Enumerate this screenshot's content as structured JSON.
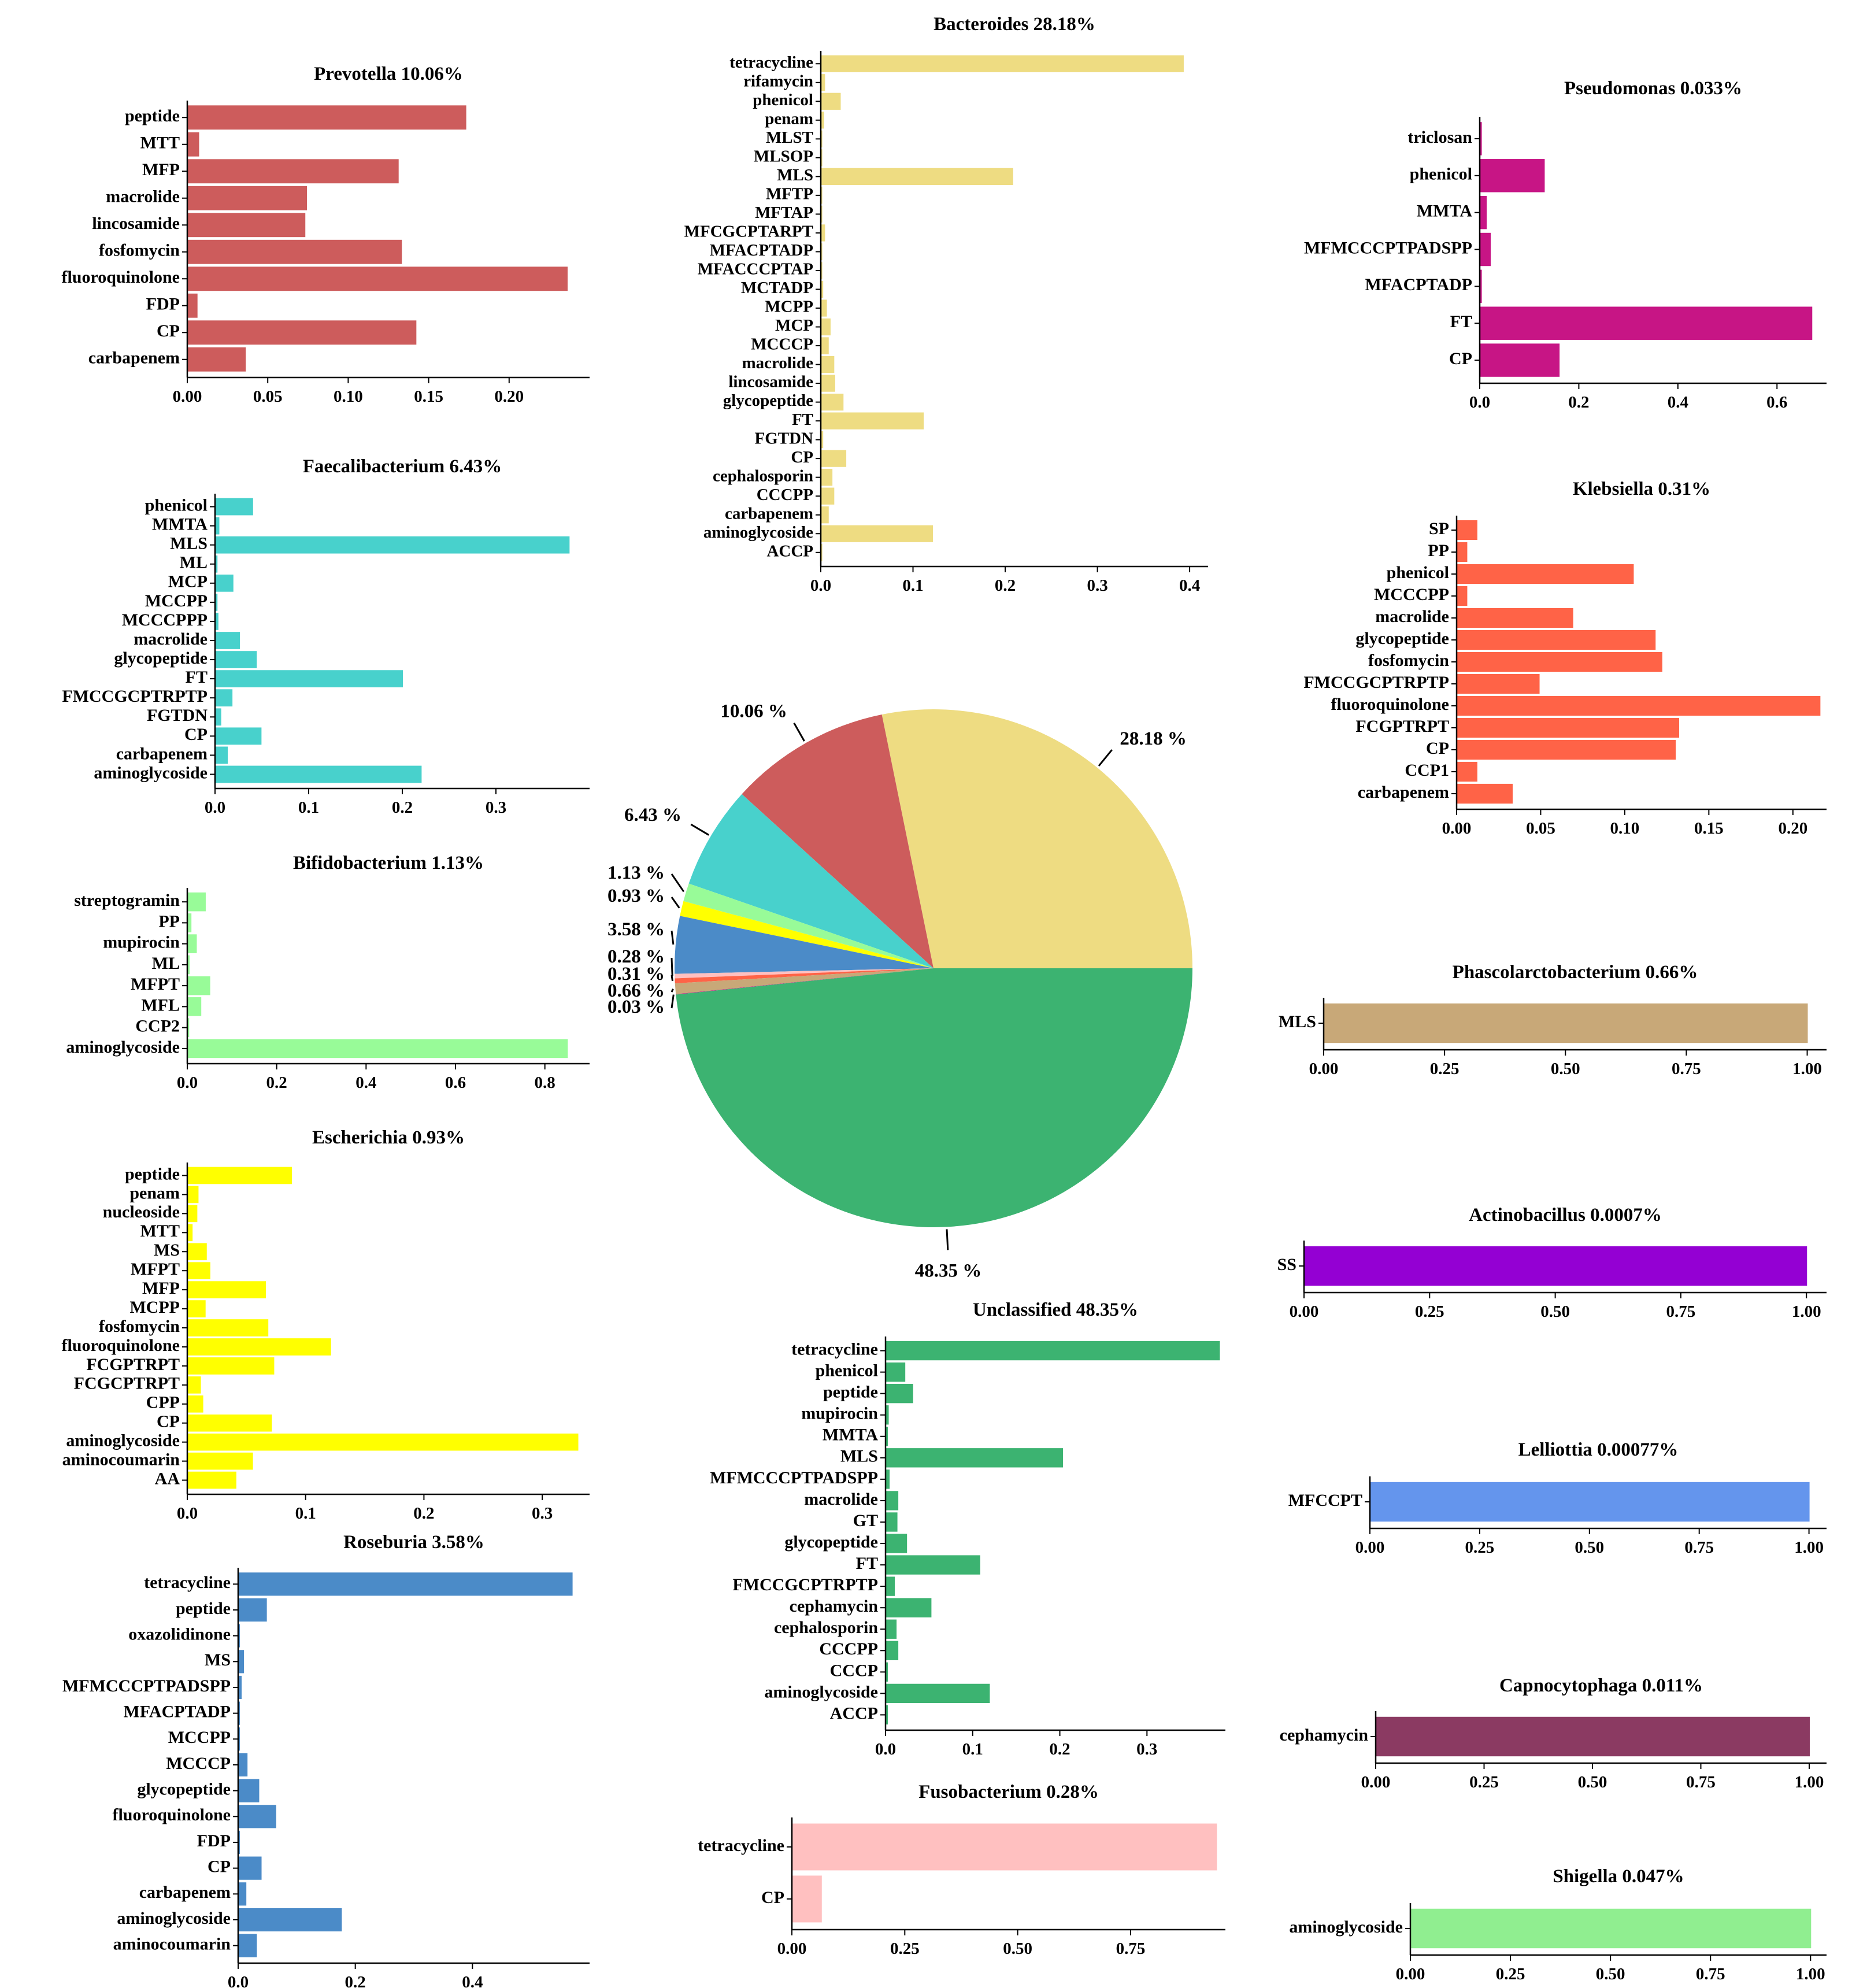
{
  "chart_data": [
    {
      "id": "prevotella",
      "type": "bar",
      "orientation": "horizontal",
      "title": "Prevotella 10.06%",
      "color": "#CD5C5C",
      "categories": [
        "peptide",
        "MTT",
        "MFP",
        "macrolide",
        "lincosamide",
        "fosfomycin",
        "fluoroquinolone",
        "FDP",
        "CP",
        "carbapenem"
      ],
      "values": [
        0.173,
        0.007,
        0.131,
        0.074,
        0.073,
        0.133,
        0.236,
        0.006,
        0.142,
        0.036
      ],
      "xlim": [
        0,
        0.25
      ],
      "ticks": [
        0,
        0.05,
        0.1,
        0.15,
        0.2
      ],
      "tick_labels": [
        "0.00",
        "0.05",
        "0.10",
        "0.15",
        "0.20"
      ]
    },
    {
      "id": "bacteroides",
      "type": "bar",
      "orientation": "horizontal",
      "title": "Bacteroides 28.18%",
      "color": "#EEDC82",
      "categories": [
        "tetracycline",
        "rifamycin",
        "phenicol",
        "penam",
        "MLST",
        "MLSOP",
        "MLS",
        "MFTP",
        "MFTAP",
        "MFCGCPTARPT",
        "MFACPTADP",
        "MFACCCPTAP",
        "MCTADP",
        "MCPP",
        "MCP",
        "MCCCP",
        "macrolide",
        "lincosamide",
        "glycopeptide",
        "FT",
        "FGTDN",
        "CP",
        "cephalosporin",
        "CCCPP",
        "carbapenem",
        "aminoglycoside",
        "ACCP"
      ],
      "values": [
        0.393,
        0.004,
        0.021,
        0.003,
        0.001,
        0.001,
        0.208,
        0.001,
        0.001,
        0.004,
        0.001,
        0.001,
        0.002,
        0.006,
        0.01,
        0.008,
        0.014,
        0.015,
        0.024,
        0.111,
        0.002,
        0.027,
        0.012,
        0.014,
        0.008,
        0.121,
        0.001
      ],
      "xlim": [
        0,
        0.42
      ],
      "ticks": [
        0,
        0.1,
        0.2,
        0.3,
        0.4
      ],
      "tick_labels": [
        "0.0",
        "0.1",
        "0.2",
        "0.3",
        "0.4"
      ]
    },
    {
      "id": "pseudomonas",
      "type": "bar",
      "orientation": "horizontal",
      "title": "Pseudomonas 0.033%",
      "color": "#C71585",
      "categories": [
        "triclosan",
        "phenicol",
        "MMTA",
        "MFMCCCPTPADSPP",
        "MFACPTADP",
        "FT",
        "CP"
      ],
      "values": [
        0.003,
        0.13,
        0.013,
        0.021,
        0.003,
        0.67,
        0.16
      ],
      "xlim": [
        0,
        0.7
      ],
      "ticks": [
        0,
        0.2,
        0.4,
        0.6
      ],
      "tick_labels": [
        "0.0",
        "0.2",
        "0.4",
        "0.6"
      ]
    },
    {
      "id": "faecalibacterium",
      "type": "bar",
      "orientation": "horizontal",
      "title": "Faecalibacterium 6.43%",
      "color": "#48D1CC",
      "categories": [
        "phenicol",
        "MMTA",
        "MLS",
        "ML",
        "MCP",
        "MCCPP",
        "MCCCPPP",
        "macrolide",
        "glycopeptide",
        "FT",
        "FMCCGCPTRPTP",
        "FGTDN",
        "CP",
        "carbapenem",
        "aminoglycoside"
      ],
      "values": [
        0.04,
        0.004,
        0.378,
        0.002,
        0.019,
        0.002,
        0.003,
        0.026,
        0.044,
        0.2,
        0.018,
        0.006,
        0.049,
        0.013,
        0.22
      ],
      "xlim": [
        0,
        0.4
      ],
      "ticks": [
        0,
        0.1,
        0.2,
        0.3
      ],
      "tick_labels": [
        "0.0",
        "0.1",
        "0.2",
        "0.3"
      ]
    },
    {
      "id": "klebsiella",
      "type": "bar",
      "orientation": "horizontal",
      "title": "Klebsiella 0.31%",
      "color": "#FF6347",
      "categories": [
        "SP",
        "PP",
        "phenicol",
        "MCCCPP",
        "macrolide",
        "glycopeptide",
        "fosfomycin",
        "FMCCGCPTRPTP",
        "fluoroquinolone",
        "FCGPTRPT",
        "CP",
        "CCP1",
        "carbapenem"
      ],
      "values": [
        0.012,
        0.006,
        0.105,
        0.006,
        0.069,
        0.118,
        0.122,
        0.049,
        0.216,
        0.132,
        0.13,
        0.012,
        0.033
      ],
      "xlim": [
        0,
        0.22
      ],
      "ticks": [
        0,
        0.05,
        0.1,
        0.15,
        0.2
      ],
      "tick_labels": [
        "0.00",
        "0.05",
        "0.10",
        "0.15",
        "0.20"
      ]
    },
    {
      "id": "bifidobacterium",
      "type": "bar",
      "orientation": "horizontal",
      "title": "Bifidobacterium 1.13%",
      "color": "#98FB98",
      "categories": [
        "streptogramin",
        "PP",
        "mupirocin",
        "ML",
        "MFPT",
        "MFL",
        "CCP2",
        "aminoglycoside"
      ],
      "values": [
        0.04,
        0.008,
        0.02,
        0.004,
        0.05,
        0.03,
        0.003,
        0.85
      ],
      "xlim": [
        0,
        0.9
      ],
      "ticks": [
        0,
        0.2,
        0.4,
        0.6,
        0.8
      ],
      "tick_labels": [
        "0.0",
        "0.2",
        "0.4",
        "0.6",
        "0.8"
      ]
    },
    {
      "id": "phascolarctobacterium",
      "type": "bar",
      "orientation": "horizontal",
      "title": "Phascolarctobacterium 0.66%",
      "color": "#C8A878",
      "categories": [
        "MLS"
      ],
      "values": [
        1.0
      ],
      "xlim": [
        0,
        1.04
      ],
      "ticks": [
        0,
        0.25,
        0.5,
        0.75,
        1.0
      ],
      "tick_labels": [
        "0.00",
        "0.25",
        "0.50",
        "0.75",
        "1.00"
      ]
    },
    {
      "id": "escherichia",
      "type": "bar",
      "orientation": "horizontal",
      "title": "Escherichia 0.93%",
      "color": "#FFFF00",
      "categories": [
        "peptide",
        "penam",
        "nucleoside",
        "MTT",
        "MS",
        "MFPT",
        "MFP",
        "MCPP",
        "fosfomycin",
        "fluoroquinolone",
        "FCGPTRPT",
        "FCGCPTRPT",
        "CPP",
        "CP",
        "aminoglycoside",
        "aminocoumarin",
        "AA"
      ],
      "values": [
        0.088,
        0.009,
        0.008,
        0.004,
        0.016,
        0.019,
        0.066,
        0.015,
        0.068,
        0.121,
        0.073,
        0.011,
        0.013,
        0.071,
        0.33,
        0.055,
        0.041
      ],
      "xlim": [
        0,
        0.34
      ],
      "ticks": [
        0,
        0.1,
        0.2,
        0.3
      ],
      "tick_labels": [
        "0.0",
        "0.1",
        "0.2",
        "0.3"
      ]
    },
    {
      "id": "actinobacillus",
      "type": "bar",
      "orientation": "horizontal",
      "title": "Actinobacillus 0.0007%",
      "color": "#9400D3",
      "categories": [
        "SS"
      ],
      "values": [
        1.0
      ],
      "xlim": [
        0,
        1.04
      ],
      "ticks": [
        0,
        0.25,
        0.5,
        0.75,
        1.0
      ],
      "tick_labels": [
        "0.00",
        "0.25",
        "0.50",
        "0.75",
        "1.00"
      ]
    },
    {
      "id": "unclassified",
      "type": "bar",
      "orientation": "horizontal",
      "title": "Unclassified 48.35%",
      "color": "#3CB371",
      "categories": [
        "tetracycline",
        "phenicol",
        "peptide",
        "mupirocin",
        "MMTA",
        "MLS",
        "MFMCCCPTPADSPP",
        "macrolide",
        "GT",
        "glycopeptide",
        "FT",
        "FMCCGCPTRPTP",
        "cephamycin",
        "cephalosporin",
        "CCCPP",
        "CCCP",
        "aminoglycoside",
        "ACCP"
      ],
      "values": [
        0.383,
        0.022,
        0.031,
        0.003,
        0.002,
        0.203,
        0.004,
        0.014,
        0.013,
        0.024,
        0.108,
        0.01,
        0.052,
        0.012,
        0.014,
        0.002,
        0.119,
        0.002
      ],
      "xlim": [
        0,
        0.39
      ],
      "ticks": [
        0,
        0.1,
        0.2,
        0.3
      ],
      "tick_labels": [
        "0.0",
        "0.1",
        "0.2",
        "0.3"
      ]
    },
    {
      "id": "lelliottia",
      "type": "bar",
      "orientation": "horizontal",
      "title": "Lelliottia 0.00077%",
      "color": "#6495ED",
      "categories": [
        "MFCCPT"
      ],
      "values": [
        1.0
      ],
      "xlim": [
        0,
        1.04
      ],
      "ticks": [
        0,
        0.25,
        0.5,
        0.75,
        1.0
      ],
      "tick_labels": [
        "0.00",
        "0.25",
        "0.50",
        "0.75",
        "1.00"
      ]
    },
    {
      "id": "roseburia",
      "type": "bar",
      "orientation": "horizontal",
      "title": "Roseburia 3.58%",
      "color": "#4B8BC8",
      "categories": [
        "tetracycline",
        "peptide",
        "oxazolidinone",
        "MS",
        "MFMCCCPTPADSPP",
        "MFACPTADP",
        "MCCPP",
        "MCCCP",
        "glycopeptide",
        "fluoroquinolone",
        "FDP",
        "CP",
        "carbapenem",
        "aminoglycoside",
        "aminocoumarin"
      ],
      "values": [
        0.57,
        0.048,
        0.002,
        0.009,
        0.005,
        0.002,
        0.002,
        0.015,
        0.035,
        0.064,
        0.002,
        0.039,
        0.013,
        0.176,
        0.031
      ],
      "xlim": [
        0,
        0.6
      ],
      "ticks": [
        0,
        0.2,
        0.4
      ],
      "tick_labels": [
        "0.0",
        "0.2",
        "0.4"
      ]
    },
    {
      "id": "capnocytophaga",
      "type": "bar",
      "orientation": "horizontal",
      "title": "Capnocytophaga 0.011%",
      "color": "#8B3A62",
      "categories": [
        "cephamycin"
      ],
      "values": [
        1.0
      ],
      "xlim": [
        0,
        1.04
      ],
      "ticks": [
        0,
        0.25,
        0.5,
        0.75,
        1.0
      ],
      "tick_labels": [
        "0.00",
        "0.25",
        "0.50",
        "0.75",
        "1.00"
      ]
    },
    {
      "id": "fusobacterium",
      "type": "bar",
      "orientation": "horizontal",
      "title": "Fusobacterium 0.28%",
      "color": "#FFC0C0",
      "categories": [
        "tetracycline",
        "CP"
      ],
      "values": [
        0.94,
        0.065
      ],
      "xlim": [
        0,
        0.96
      ],
      "ticks": [
        0,
        0.25,
        0.5,
        0.75
      ],
      "tick_labels": [
        "0.00",
        "0.25",
        "0.50",
        "0.75"
      ]
    },
    {
      "id": "shigella",
      "type": "bar",
      "orientation": "horizontal",
      "title": "Shigella 0.047%",
      "color": "#90EE90",
      "categories": [
        "aminoglycoside"
      ],
      "values": [
        1.0
      ],
      "xlim": [
        0,
        1.04
      ],
      "ticks": [
        0,
        0.25,
        0.5,
        0.75,
        1.0
      ],
      "tick_labels": [
        "0.00",
        "0.25",
        "0.50",
        "0.75",
        "1.00"
      ]
    },
    {
      "id": "genus-pie",
      "type": "pie",
      "title": "",
      "slices": [
        {
          "label": "28.18 %",
          "value": 28.18,
          "color": "#EEDC82"
        },
        {
          "label": "10.06 %",
          "value": 10.06,
          "color": "#CD5C5C"
        },
        {
          "label": "6.43 %",
          "value": 6.43,
          "color": "#48D1CC"
        },
        {
          "label": "1.13 %",
          "value": 1.13,
          "color": "#98FB98"
        },
        {
          "label": "0.93 %",
          "value": 0.93,
          "color": "#FFFF00"
        },
        {
          "label": "3.58 %",
          "value": 3.58,
          "color": "#4B8BC8"
        },
        {
          "label": "0.28 %",
          "value": 0.28,
          "color": "#FFC0C0"
        },
        {
          "label": "0.31 %",
          "value": 0.31,
          "color": "#FF6347"
        },
        {
          "label": "0.66 %",
          "value": 0.66,
          "color": "#C8A878"
        },
        {
          "label": "0.03 %",
          "value": 0.03,
          "color": "#C71585"
        },
        {
          "label": "48.35 %",
          "value": 48.35,
          "color": "#3CB371"
        }
      ]
    }
  ]
}
